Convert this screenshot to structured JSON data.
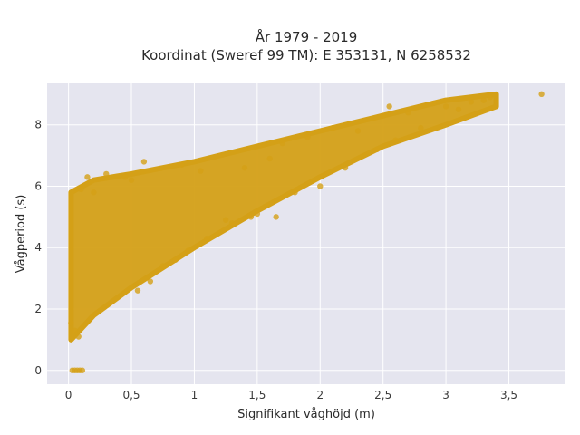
{
  "chart_data": {
    "type": "scatter",
    "title": "År 1979 - 2019",
    "subtitle": "Koordinat (Sweref 99 TM): E 353131, N 6258532",
    "xlabel": "Signifikant våghöjd (m)",
    "ylabel": "Vågperiod (s)",
    "xlim": [
      -0.17,
      3.95
    ],
    "ylim": [
      -0.45,
      9.35
    ],
    "x_ticks": [
      0,
      0.5,
      1,
      1.5,
      2,
      2.5,
      3,
      3.5
    ],
    "x_tick_labels": [
      "0",
      "0,5",
      "1",
      "1,5",
      "2",
      "2,5",
      "3",
      "3,5"
    ],
    "y_ticks": [
      0,
      2,
      4,
      6,
      8
    ],
    "y_tick_labels": [
      "0",
      "2",
      "4",
      "6",
      "8"
    ],
    "grid": true,
    "marker_color": "#D4A017",
    "background_color": "#E5E5EF",
    "density_band": {
      "x_start": 0.02,
      "x_end": 3.4,
      "lower_bound": [
        [
          0.02,
          1.0
        ],
        [
          0.2,
          1.8
        ],
        [
          0.5,
          2.7
        ],
        [
          1.0,
          4.0
        ],
        [
          1.5,
          5.2
        ],
        [
          2.0,
          6.3
        ],
        [
          2.5,
          7.3
        ],
        [
          3.0,
          8.0
        ],
        [
          3.4,
          8.6
        ]
      ],
      "upper_bound": [
        [
          0.02,
          5.8
        ],
        [
          0.2,
          6.2
        ],
        [
          0.5,
          6.4
        ],
        [
          1.0,
          6.8
        ],
        [
          1.5,
          7.3
        ],
        [
          2.0,
          7.8
        ],
        [
          2.5,
          8.3
        ],
        [
          3.0,
          8.8
        ],
        [
          3.4,
          9.0
        ]
      ]
    },
    "series": [
      {
        "points": [
          [
            0.03,
            0
          ],
          [
            0.05,
            0
          ],
          [
            0.07,
            0
          ],
          [
            0.09,
            0
          ],
          [
            0.11,
            0
          ],
          [
            0.15,
            6.3
          ],
          [
            0.3,
            6.4
          ],
          [
            0.45,
            6.3
          ],
          [
            0.6,
            6.8
          ],
          [
            0.5,
            6.2
          ],
          [
            0.9,
            6.7
          ],
          [
            1.05,
            6.5
          ],
          [
            0.55,
            2.6
          ],
          [
            0.65,
            2.9
          ],
          [
            0.75,
            3.4
          ],
          [
            0.85,
            3.6
          ],
          [
            0.95,
            3.9
          ],
          [
            1.1,
            4.3
          ],
          [
            1.3,
            4.8
          ],
          [
            1.45,
            5.0
          ],
          [
            1.65,
            5.0
          ],
          [
            1.8,
            5.8
          ],
          [
            1.7,
            7.4
          ],
          [
            1.9,
            7.6
          ],
          [
            2.1,
            7.9
          ],
          [
            2.3,
            7.8
          ],
          [
            2.5,
            8.3
          ],
          [
            2.55,
            8.6
          ],
          [
            2.7,
            8.4
          ],
          [
            2.9,
            8.7
          ],
          [
            3.0,
            8.6
          ],
          [
            3.1,
            8.5
          ],
          [
            3.2,
            8.75
          ],
          [
            3.3,
            8.8
          ],
          [
            3.35,
            8.9
          ],
          [
            3.76,
            9.0
          ],
          [
            0.02,
            1.55
          ],
          [
            0.05,
            1.3
          ],
          [
            0.08,
            1.1
          ],
          [
            0.1,
            5.9
          ],
          [
            0.2,
            5.8
          ],
          [
            1.25,
            4.9
          ],
          [
            1.5,
            5.1
          ],
          [
            2.0,
            6.0
          ],
          [
            2.2,
            6.6
          ],
          [
            2.45,
            7.2
          ],
          [
            2.6,
            7.5
          ],
          [
            2.8,
            7.9
          ],
          [
            1.4,
            6.6
          ],
          [
            1.6,
            6.9
          ]
        ]
      }
    ]
  }
}
